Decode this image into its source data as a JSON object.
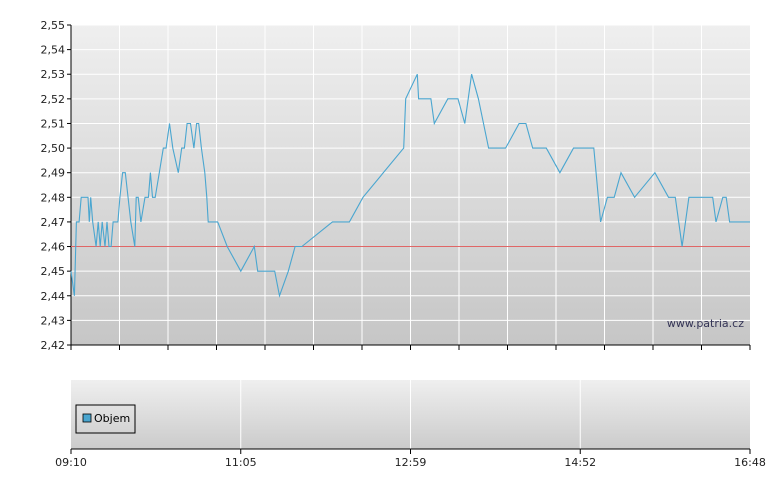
{
  "watermark": "www.patria.cz",
  "chart_data": [
    {
      "type": "line",
      "ylim": [
        2.42,
        2.55
      ],
      "y_ticks": [
        "2,42",
        "2,43",
        "2,44",
        "2,45",
        "2,46",
        "2,47",
        "2,48",
        "2,49",
        "2,50",
        "2,51",
        "2,52",
        "2,53",
        "2,54",
        "2,55"
      ],
      "reference_line": {
        "value": 2.46,
        "color": "#e06666"
      },
      "colors": {
        "line": "#4aa6d0",
        "grid": "#ffffff",
        "bg_top": "#ececec",
        "bg_bottom": "#c9c9c9"
      },
      "series": [
        {
          "color": "#4aa6d0",
          "x": [
            0,
            0.005,
            0.008,
            0.012,
            0.015,
            0.017,
            0.02,
            0.025,
            0.027,
            0.029,
            0.032,
            0.037,
            0.04,
            0.043,
            0.046,
            0.05,
            0.053,
            0.056,
            0.059,
            0.062,
            0.065,
            0.069,
            0.072,
            0.076,
            0.08,
            0.088,
            0.094,
            0.096,
            0.099,
            0.103,
            0.109,
            0.114,
            0.117,
            0.12,
            0.124,
            0.13,
            0.136,
            0.14,
            0.145,
            0.15,
            0.158,
            0.163,
            0.167,
            0.171,
            0.176,
            0.181,
            0.185,
            0.188,
            0.192,
            0.197,
            0.2,
            0.202,
            0.204,
            0.206,
            0.208,
            0.21,
            0.212,
            0.216,
            0.23,
            0.25,
            0.27,
            0.275,
            0.3,
            0.307,
            0.32,
            0.33,
            0.34,
            0.385,
            0.394,
            0.41,
            0.43,
            0.49,
            0.493,
            0.51,
            0.512,
            0.53,
            0.535,
            0.555,
            0.57,
            0.58,
            0.59,
            0.6,
            0.615,
            0.625,
            0.64,
            0.66,
            0.67,
            0.68,
            0.69,
            0.7,
            0.72,
            0.74,
            0.75,
            0.77,
            0.78,
            0.79,
            0.8,
            0.81,
            0.83,
            0.86,
            0.88,
            0.89,
            0.9,
            0.91,
            0.925,
            0.94,
            0.945,
            0.95,
            0.96,
            0.965,
            0.97,
            1.0
          ],
          "y": [
            2.45,
            2.44,
            2.47,
            2.47,
            2.48,
            2.48,
            2.48,
            2.48,
            2.47,
            2.48,
            2.47,
            2.46,
            2.47,
            2.46,
            2.47,
            2.46,
            2.47,
            2.46,
            2.46,
            2.47,
            2.47,
            2.47,
            2.48,
            2.49,
            2.49,
            2.47,
            2.46,
            2.48,
            2.48,
            2.47,
            2.48,
            2.48,
            2.49,
            2.48,
            2.48,
            2.49,
            2.5,
            2.5,
            2.51,
            2.5,
            2.49,
            2.5,
            2.5,
            2.51,
            2.51,
            2.5,
            2.51,
            2.51,
            2.5,
            2.49,
            2.48,
            2.47,
            2.47,
            2.47,
            2.47,
            2.47,
            2.47,
            2.47,
            2.46,
            2.45,
            2.46,
            2.45,
            2.45,
            2.44,
            2.45,
            2.46,
            2.46,
            2.47,
            2.47,
            2.47,
            2.48,
            2.5,
            2.52,
            2.53,
            2.52,
            2.52,
            2.51,
            2.52,
            2.52,
            2.51,
            2.53,
            2.52,
            2.5,
            2.5,
            2.5,
            2.51,
            2.51,
            2.5,
            2.5,
            2.5,
            2.49,
            2.5,
            2.5,
            2.5,
            2.47,
            2.48,
            2.48,
            2.49,
            2.48,
            2.49,
            2.48,
            2.48,
            2.46,
            2.48,
            2.48,
            2.48,
            2.48,
            2.47,
            2.48,
            2.48,
            2.47,
            2.47
          ]
        }
      ]
    },
    {
      "type": "bar",
      "legend": [
        "Objem"
      ],
      "legend_color": "#4aa6d0",
      "x_ticks": [
        "09:10",
        "11:05",
        "12:59",
        "14:52",
        "16:48"
      ]
    }
  ]
}
